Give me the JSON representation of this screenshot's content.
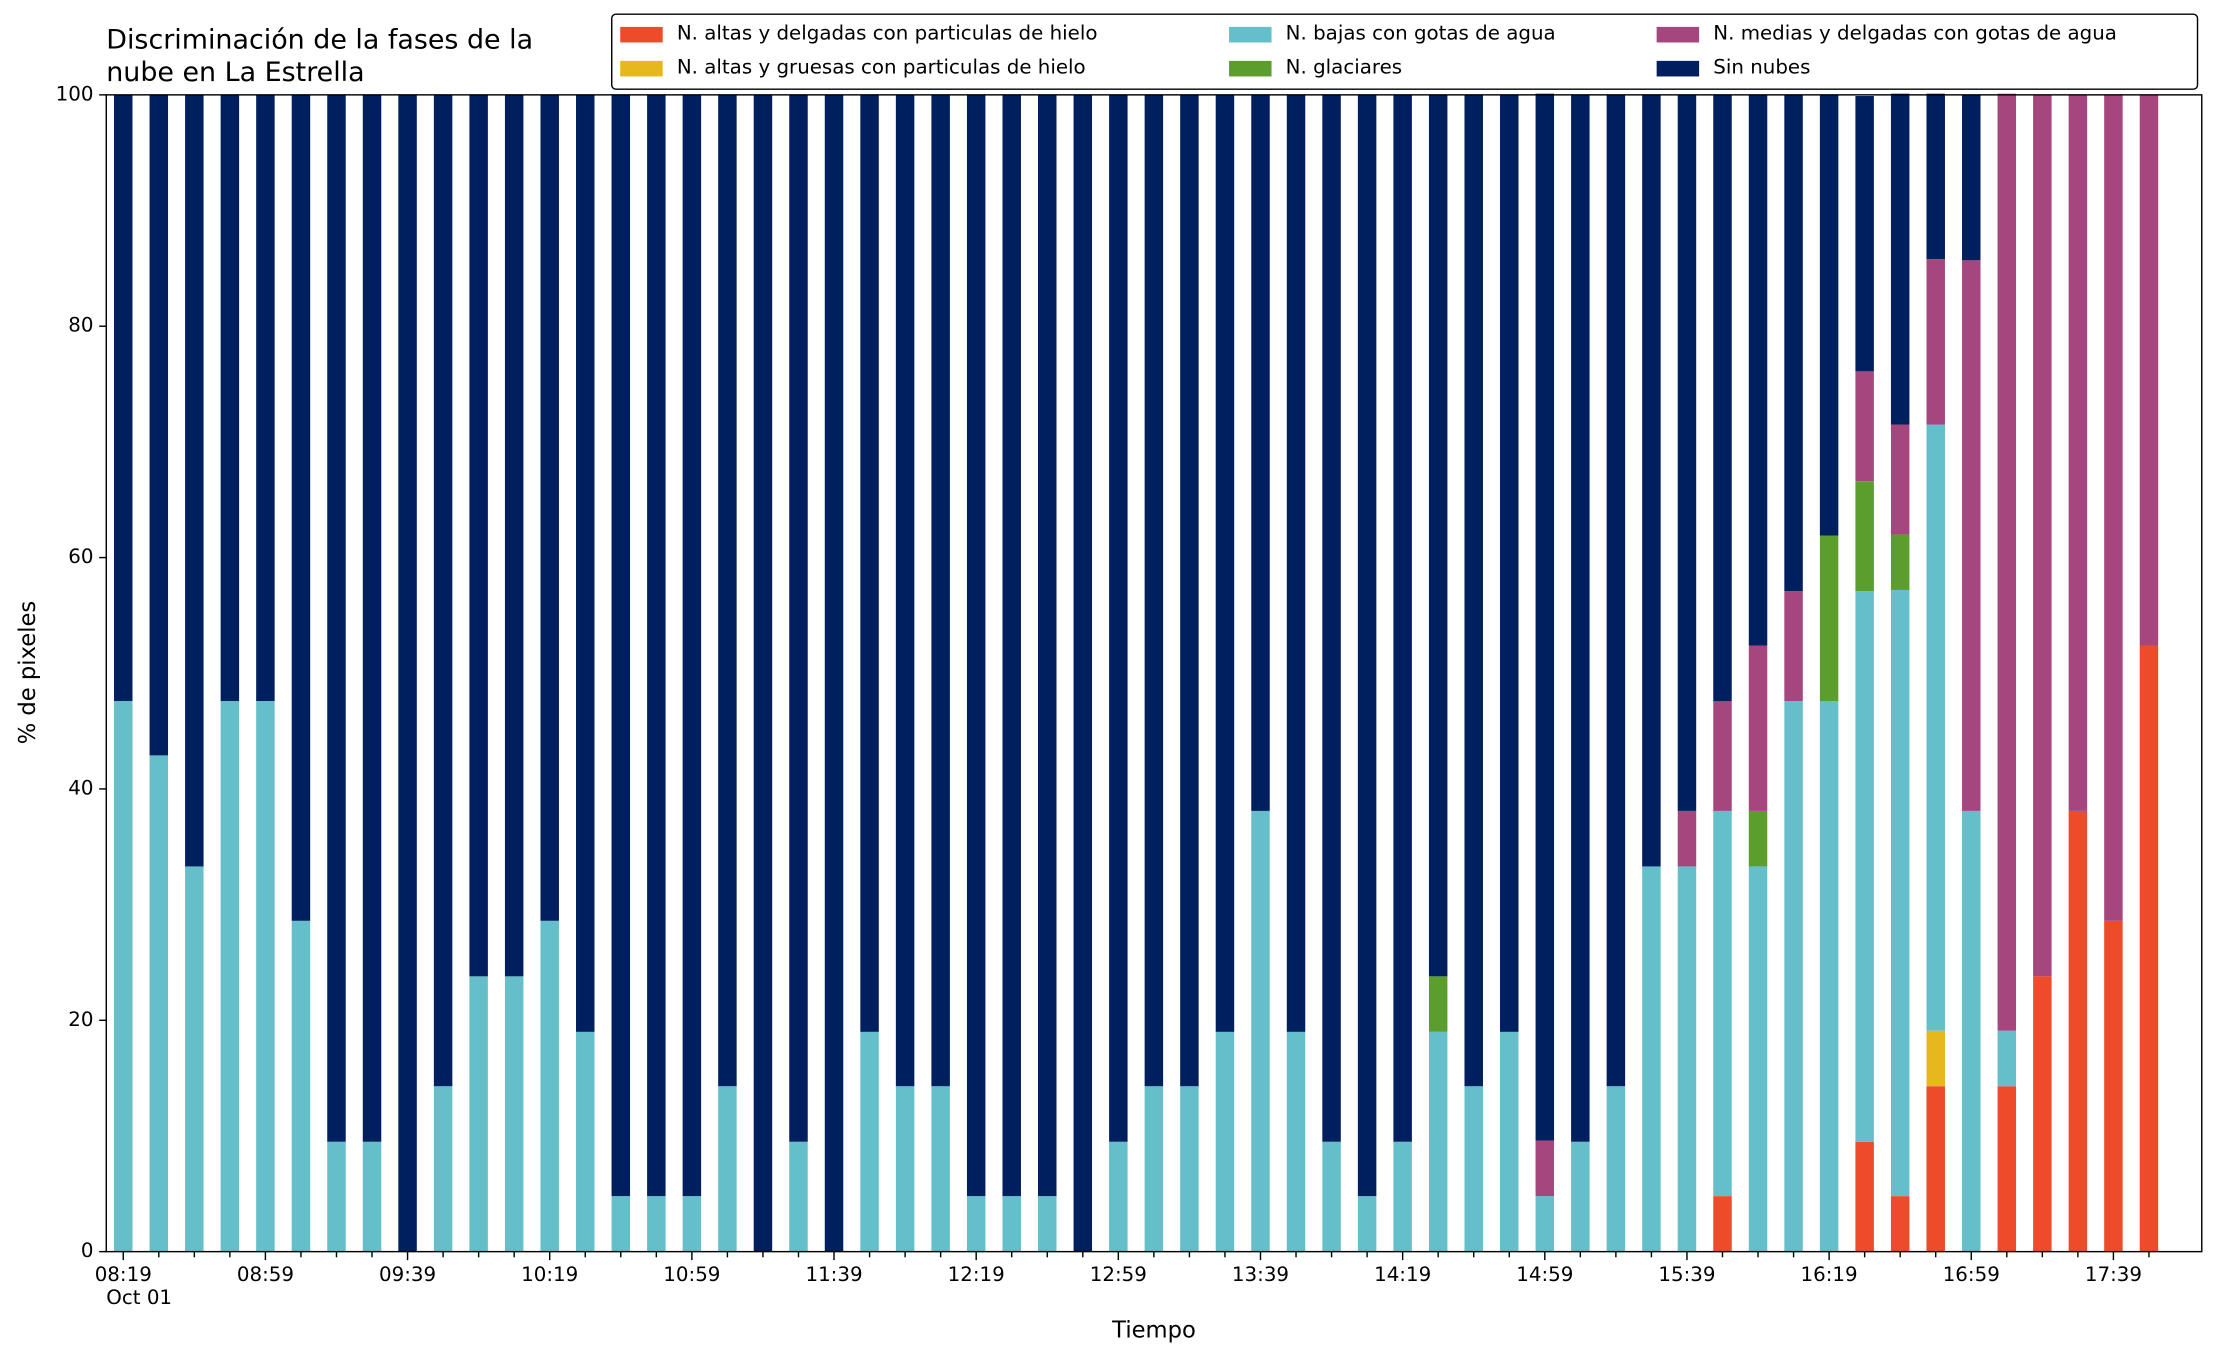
{
  "chart_data": {
    "type": "stacked_bar",
    "title": [
      "Discriminación de la fases de la",
      "nube en La Estrella"
    ],
    "xlabel": "Tiempo",
    "ylabel": "% de pixeles",
    "date_label": "Oct 01",
    "categories": [
      "08:19",
      null,
      null,
      null,
      "08:59",
      null,
      null,
      null,
      "09:39",
      null,
      null,
      null,
      "10:19",
      null,
      null,
      null,
      "10:59",
      null,
      null,
      null,
      "11:39",
      null,
      null,
      null,
      "12:19",
      null,
      null,
      null,
      "12:59",
      null,
      null,
      null,
      "13:39",
      null,
      null,
      null,
      "14:19",
      null,
      null,
      null,
      "14:59",
      null,
      null,
      null,
      "15:39",
      null,
      null,
      null,
      "16:19",
      null,
      null,
      null,
      "16:59",
      null,
      null,
      null,
      "17:39",
      null
    ],
    "ylim": [
      0,
      100
    ],
    "yticks": [
      0,
      20,
      40,
      60,
      80,
      100
    ],
    "legend": "upper right",
    "series": [
      {
        "name": "N. altas y delgadas con particulas de hielo",
        "color": "#ee4b2b",
        "values": [
          0,
          0,
          0,
          0,
          0,
          0,
          0,
          0,
          0,
          0,
          0,
          0,
          0,
          0,
          0,
          0,
          0,
          0,
          0,
          0,
          0,
          0,
          0,
          0,
          0,
          0,
          0,
          0,
          0,
          0,
          0,
          0,
          0,
          0,
          0,
          0,
          0,
          0,
          0,
          0,
          0,
          0,
          0,
          0,
          0,
          4.8,
          0,
          0,
          0,
          9.5,
          4.8,
          14.3,
          0,
          14.3,
          23.8,
          38.1,
          28.6,
          52.4
        ]
      },
      {
        "name": "N. altas y gruesas con particulas de hielo",
        "color": "#e6b81e",
        "values": [
          0,
          0,
          0,
          0,
          0,
          0,
          0,
          0,
          0,
          0,
          0,
          0,
          0,
          0,
          0,
          0,
          0,
          0,
          0,
          0,
          0,
          0,
          0,
          0,
          0,
          0,
          0,
          0,
          0,
          0,
          0,
          0,
          0,
          0,
          0,
          0,
          0,
          0,
          0,
          0,
          0,
          0,
          0,
          0,
          0,
          0,
          0,
          0,
          0,
          0,
          0,
          4.8,
          0,
          0,
          0,
          0,
          0,
          0
        ]
      },
      {
        "name": "N. bajas con gotas de agua",
        "color": "#65bfca",
        "values": [
          47.6,
          42.9,
          33.3,
          47.6,
          47.6,
          28.6,
          9.5,
          9.5,
          0,
          14.3,
          23.8,
          23.8,
          28.6,
          19.0,
          4.8,
          4.8,
          4.8,
          14.3,
          0,
          9.5,
          0,
          19.0,
          14.3,
          14.3,
          4.8,
          4.8,
          4.8,
          0,
          9.5,
          14.3,
          14.3,
          19.0,
          38.1,
          19.0,
          9.5,
          4.8,
          9.5,
          19.0,
          14.3,
          19.0,
          4.8,
          9.5,
          14.3,
          33.3,
          33.3,
          33.3,
          33.3,
          47.6,
          47.6,
          47.6,
          52.4,
          52.4,
          38.1,
          4.8,
          0,
          0,
          0,
          0
        ]
      },
      {
        "name": "N. glaciares",
        "color": "#5c9e2e",
        "values": [
          0,
          0,
          0,
          0,
          0,
          0,
          0,
          0,
          0,
          0,
          0,
          0,
          0,
          0,
          0,
          0,
          0,
          0,
          0,
          0,
          0,
          0,
          0,
          0,
          0,
          0,
          0,
          0,
          0,
          0,
          0,
          0,
          0,
          0,
          0,
          0,
          0,
          4.8,
          0,
          0,
          0,
          0,
          0,
          0,
          0,
          0,
          4.8,
          0,
          14.3,
          9.5,
          4.8,
          0,
          0,
          0,
          0,
          0,
          0,
          0
        ]
      },
      {
        "name": "N. medias y delgadas con gotas de agua",
        "color": "#a5467e",
        "values": [
          0,
          0,
          0,
          0,
          0,
          0,
          0,
          0,
          0,
          0,
          0,
          0,
          0,
          0,
          0,
          0,
          0,
          0,
          0,
          0,
          0,
          0,
          0,
          0,
          0,
          0,
          0,
          0,
          0,
          0,
          0,
          0,
          0,
          0,
          0,
          0,
          0,
          0,
          0,
          0,
          4.8,
          0,
          0,
          0,
          4.8,
          9.5,
          14.3,
          9.5,
          0,
          9.5,
          9.5,
          14.3,
          47.6,
          81.0,
          76.2,
          61.9,
          71.4,
          47.6
        ]
      },
      {
        "name": "Sin nubes",
        "color": "#001f5f",
        "values": [
          52.4,
          57.1,
          66.7,
          52.4,
          52.4,
          71.4,
          90.5,
          90.5,
          100,
          85.7,
          76.2,
          76.2,
          71.4,
          81.0,
          95.2,
          95.2,
          95.2,
          85.7,
          100,
          90.5,
          100,
          81.0,
          85.7,
          85.7,
          95.2,
          95.2,
          95.2,
          100,
          90.5,
          85.7,
          85.7,
          81.0,
          61.9,
          81.0,
          90.5,
          95.2,
          90.5,
          76.2,
          85.7,
          81.0,
          90.5,
          90.5,
          85.7,
          66.7,
          61.9,
          52.4,
          47.6,
          42.9,
          38.1,
          23.8,
          28.6,
          14.3,
          14.3,
          0,
          0,
          0,
          0,
          0
        ]
      }
    ]
  }
}
